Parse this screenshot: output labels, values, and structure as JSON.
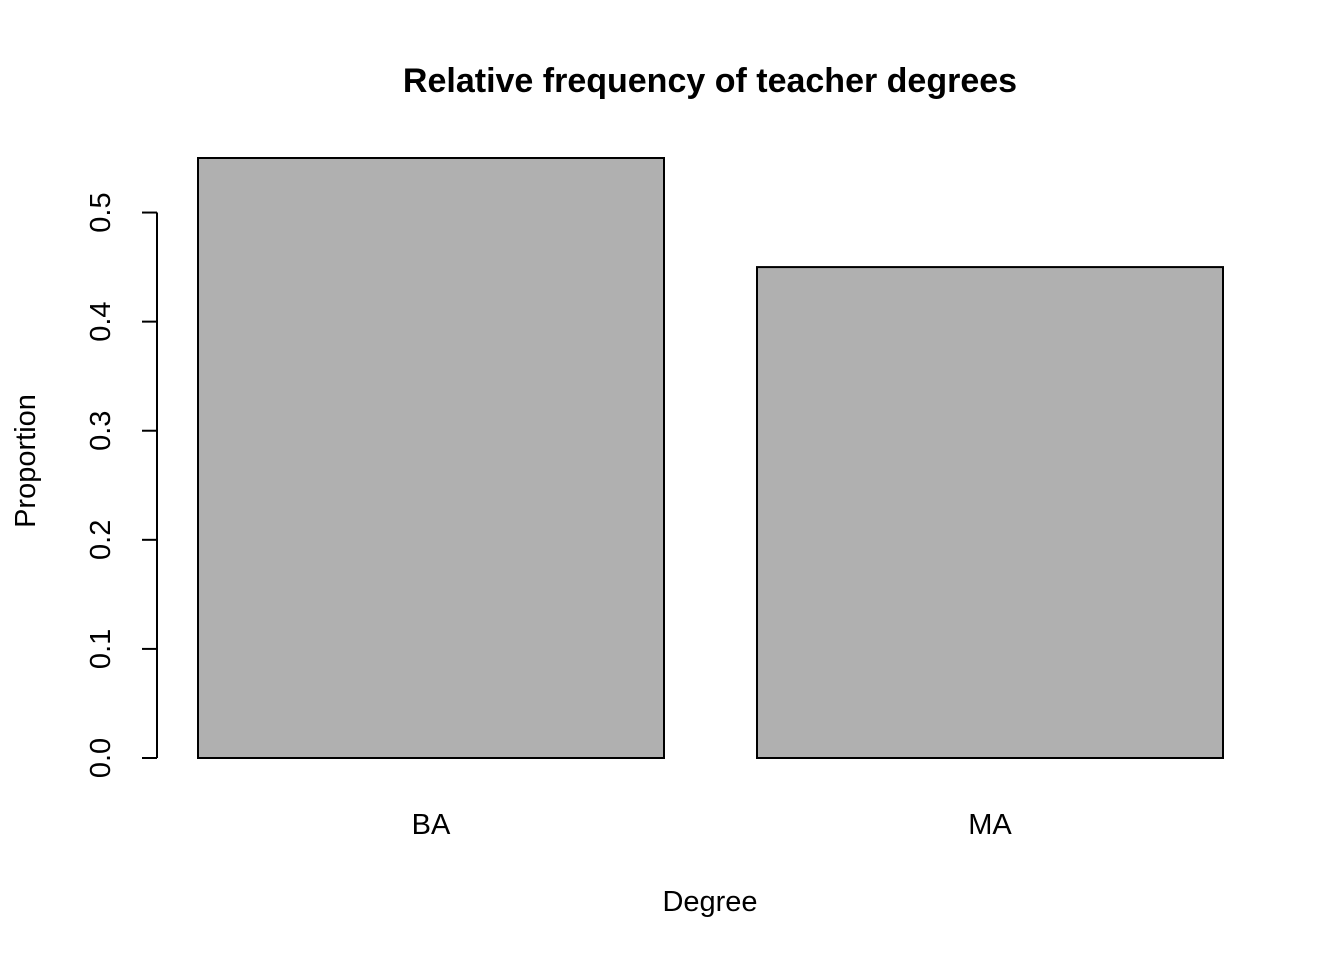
{
  "chart_data": {
    "type": "bar",
    "title": "Relative frequency of teacher degrees",
    "xlabel": "Degree",
    "ylabel": "Proportion",
    "categories": [
      "BA",
      "MA"
    ],
    "values": [
      0.55,
      0.45
    ],
    "ylim": [
      0,
      0.55
    ],
    "yticks": [
      "0.0",
      "0.1",
      "0.2",
      "0.3",
      "0.4",
      "0.5"
    ],
    "grid": false,
    "colors": {
      "bar_fill": "#b0b0b0",
      "bar_stroke": "#000000"
    }
  }
}
